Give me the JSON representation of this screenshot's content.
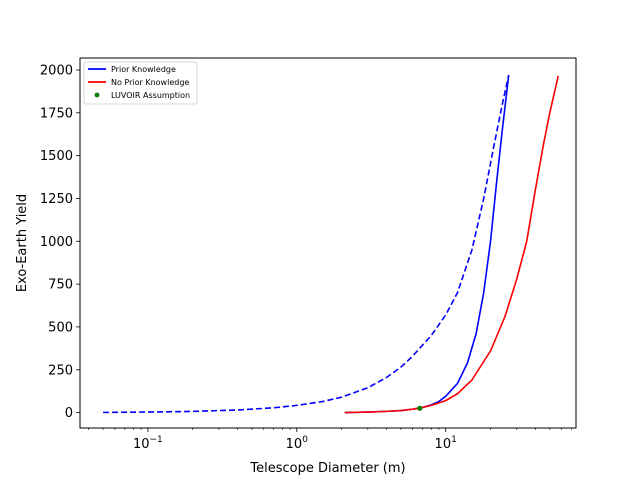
{
  "chart_data": {
    "type": "line",
    "title": "",
    "xlabel": "Telescope Diameter (m)",
    "ylabel": "Exo-Earth Yield",
    "xscale": "log",
    "xlim": [
      0.035,
      75
    ],
    "ylim": [
      -90,
      2070
    ],
    "grid": false,
    "legend_position": "top-left",
    "x_ticks": [
      {
        "value": 0.1,
        "label": "10",
        "exp": "−1"
      },
      {
        "value": 1,
        "label": "10",
        "exp": "0"
      },
      {
        "value": 10,
        "label": "10",
        "exp": "1"
      }
    ],
    "y_ticks": [
      0,
      250,
      500,
      750,
      1000,
      1250,
      1500,
      1750,
      2000
    ],
    "legend": [
      {
        "label": "Prior Knowledge",
        "color": "#0000ff",
        "kind": "line"
      },
      {
        "label": "No Prior Knowledge",
        "color": "#ff0000",
        "kind": "line"
      },
      {
        "label": "LUVOIR Assumption",
        "color": "#008000",
        "kind": "point"
      }
    ],
    "series": [
      {
        "name": "Prior Knowledge",
        "color": "#0000ff",
        "style": "solid",
        "x": [
          2.1,
          3,
          4,
          5,
          6,
          7,
          8,
          9,
          10,
          12,
          14,
          16,
          18,
          20,
          22,
          24,
          26.5
        ],
        "y": [
          0,
          3,
          7,
          12,
          20,
          30,
          45,
          65,
          95,
          170,
          290,
          460,
          700,
          1000,
          1350,
          1650,
          1970
        ]
      },
      {
        "name": "Prior Knowledge (extrapolated)",
        "color": "#0000ff",
        "style": "dashed",
        "x": [
          0.05,
          0.1,
          0.2,
          0.4,
          0.7,
          1,
          1.5,
          2,
          3,
          4,
          5,
          6,
          8,
          10,
          12,
          15,
          18,
          21,
          24,
          26.5
        ],
        "y": [
          1,
          3,
          7,
          15,
          28,
          42,
          65,
          90,
          145,
          205,
          265,
          330,
          450,
          570,
          700,
          950,
          1250,
          1550,
          1800,
          1970
        ]
      },
      {
        "name": "No Prior Knowledge",
        "color": "#ff0000",
        "style": "solid",
        "x": [
          2.1,
          3,
          4,
          5,
          6,
          7,
          8,
          10,
          12,
          15,
          20,
          25,
          30,
          35,
          40,
          45,
          50,
          57
        ],
        "y": [
          0,
          3,
          7,
          12,
          20,
          30,
          42,
          70,
          110,
          190,
          360,
          560,
          780,
          1000,
          1300,
          1550,
          1750,
          1965
        ]
      }
    ],
    "points": [
      {
        "name": "LUVOIR Assumption",
        "color": "#008000",
        "x": 6.7,
        "y": 25
      }
    ]
  }
}
